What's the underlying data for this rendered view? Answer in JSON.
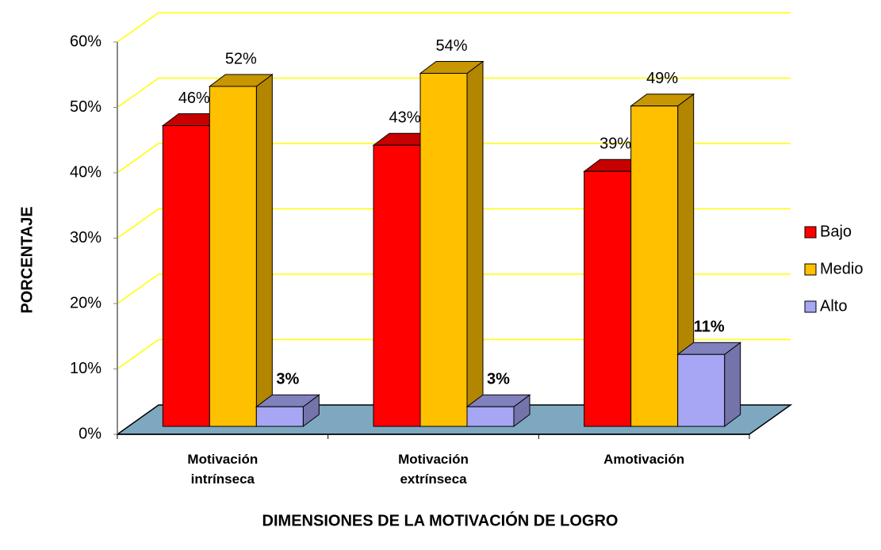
{
  "chart_data": {
    "type": "bar3d",
    "categories": [
      "Motivación intrínseca",
      "Motivación extrínseca",
      "Amotivación"
    ],
    "series": [
      {
        "name": "Bajo",
        "color": "#ff0000",
        "values": [
          46,
          43,
          39
        ],
        "value_labels": [
          "46%",
          "43%",
          "39%"
        ]
      },
      {
        "name": "Medio",
        "color": "#ffc000",
        "values": [
          52,
          54,
          49
        ],
        "value_labels": [
          "52%",
          "54%",
          "49%"
        ]
      },
      {
        "name": "Alto",
        "color": "#a6a6f4",
        "values": [
          3,
          3,
          11
        ],
        "value_labels": [
          "3%",
          "3%",
          "11%"
        ]
      }
    ],
    "ylim": [
      0,
      60
    ],
    "yticks": [
      {
        "value": 0,
        "label": "0%"
      },
      {
        "value": 10,
        "label": "10%"
      },
      {
        "value": 20,
        "label": "20%"
      },
      {
        "value": 30,
        "label": "30%"
      },
      {
        "value": 40,
        "label": "40%"
      },
      {
        "value": 50,
        "label": "50%"
      },
      {
        "value": 60,
        "label": "60%"
      }
    ],
    "ylabel": "PORCENTAJE",
    "xlabel": "DIMENSIONES DE LA MOTIVACIÓN DE LOGRO",
    "grid": true,
    "grid_color": "#ffff00",
    "floor_color": "#7ea8bf",
    "legend": "right"
  }
}
